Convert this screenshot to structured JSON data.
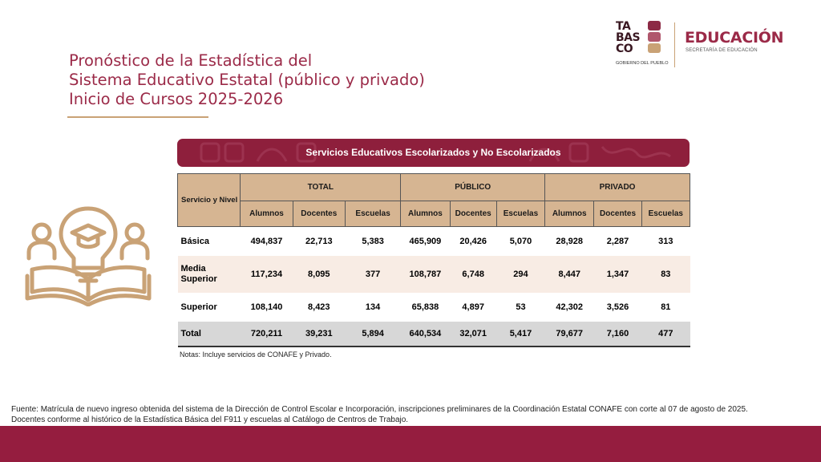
{
  "title": {
    "line1": "Pronóstico de la Estadística del",
    "line2": "Sistema Educativo Estatal (público y privado)",
    "line3": "Inicio de Cursos 2025-2026"
  },
  "logos": {
    "tabasco_line1": "TA",
    "tabasco_line2": "BAS",
    "tabasco_line3": "CO",
    "gobierno": "GOBIERNO DEL PUEBLO",
    "educacion": "EDUCACIÓN",
    "secretaria": "SECRETARÍA DE EDUCACIÓN"
  },
  "illustration_icon": "lightbulb-graduation-book-people-icon",
  "table": {
    "banner": "Servicios Educativos Escolarizados y No Escolarizados",
    "service_header": "Servicio y Nivel",
    "groups": [
      "TOTAL",
      "PÚBLICO",
      "PRIVADO"
    ],
    "subheaders": [
      "Alumnos",
      "Docentes",
      "Escuelas"
    ],
    "rows": [
      {
        "label": "Básica",
        "values": [
          "494,837",
          "22,713",
          "5,383",
          "465,909",
          "20,426",
          "5,070",
          "28,928",
          "2,287",
          "313"
        ]
      },
      {
        "label_line1": "Media",
        "label_line2": "Superior",
        "values": [
          "117,234",
          "8,095",
          "377",
          "108,787",
          "6,748",
          "294",
          "8,447",
          "1,347",
          "83"
        ]
      },
      {
        "label": "Superior",
        "values": [
          "108,140",
          "8,423",
          "134",
          "65,838",
          "4,897",
          "53",
          "42,302",
          "3,526",
          "81"
        ]
      },
      {
        "label": "Total",
        "values": [
          "720,211",
          "39,231",
          "5,894",
          "640,534",
          "32,071",
          "5,417",
          "79,677",
          "7,160",
          "477"
        ]
      }
    ]
  },
  "notes": "Notas: Incluye servicios de CONAFE y Privado.",
  "footnote": {
    "line1": "Fuente: Matrícula de nuevo ingreso obtenida del sistema de la Dirección de Control Escolar e Incorporación, inscripciones preliminares de la Coordinación Estatal CONAFE con corte al 07 de agosto de 2025.",
    "line2": "Docentes conforme al histórico de la Estadística Básica del F911 y escuelas al Catálogo de Centros de Trabajo."
  },
  "colors": {
    "brand": "#9b2a48",
    "banner": "#8e1f3c",
    "header_fill": "#d6b592",
    "accent_gold": "#c9a276",
    "total_row": "#d7d7d7"
  }
}
